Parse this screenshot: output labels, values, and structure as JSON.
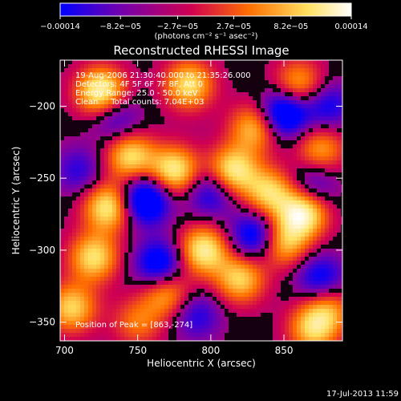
{
  "chart_data": {
    "type": "heatmap",
    "title": "Reconstructed RHESSI Image",
    "xlabel": "Heliocentric X (arcsec)",
    "ylabel": "Heliocentric Y (arcsec)",
    "xlim": [
      697,
      890
    ],
    "ylim": [
      -363,
      -168
    ],
    "x_ticks": [
      700,
      750,
      800,
      850
    ],
    "y_ticks": [
      -200,
      -250,
      -300,
      -350
    ],
    "x_tick_labels": [
      "700",
      "750",
      "800",
      "850"
    ],
    "y_tick_labels": [
      "−200",
      "−250",
      "−300",
      "−350"
    ],
    "colorbar": {
      "tick_labels": [
        "−0.00014",
        "−8.2e−05",
        "−2.7e−05",
        "2.7e−05",
        "8.2e−05",
        "0.00014"
      ],
      "tick_values": [
        -0.00014,
        -8.2e-05,
        -2.7e-05,
        2.7e-05,
        8.2e-05,
        0.00014
      ],
      "range": [
        -0.00014,
        0.00014
      ],
      "units": "(photons cm⁻² s⁻¹ asec⁻²)",
      "colormap": [
        "#0000ff",
        "#7000b0",
        "#d00050",
        "#ff7000",
        "#ffe060",
        "#ffffff"
      ]
    },
    "annotations": [
      "19-Aug-2006 21:30:40.000 to 21:35:26.000",
      "Detectors: 4F 5F 6F 7F 8F, Att 0",
      "Energy Range: 25.0 - 50.0 keV",
      "Clean     Total counts: 7.04E+03"
    ],
    "peak_label": "Position of Peak = [863,-274]",
    "peak": [
      863,
      -274
    ],
    "blobs": [
      {
        "x": 725,
        "y": -190,
        "v": 1.0
      },
      {
        "x": 730,
        "y": -270,
        "v": 0.9
      },
      {
        "x": 720,
        "y": -305,
        "v": 0.8
      },
      {
        "x": 745,
        "y": -235,
        "v": 0.8
      },
      {
        "x": 705,
        "y": -340,
        "v": 0.75
      },
      {
        "x": 785,
        "y": -185,
        "v": 0.8
      },
      {
        "x": 775,
        "y": -245,
        "v": 0.9
      },
      {
        "x": 770,
        "y": -330,
        "v": 0.65
      },
      {
        "x": 795,
        "y": -300,
        "v": 0.9
      },
      {
        "x": 815,
        "y": -245,
        "v": 0.9
      },
      {
        "x": 820,
        "y": -320,
        "v": 0.75
      },
      {
        "x": 830,
        "y": -215,
        "v": 0.7
      },
      {
        "x": 840,
        "y": -260,
        "v": 0.75
      },
      {
        "x": 850,
        "y": -295,
        "v": 0.7
      },
      {
        "x": 860,
        "y": -185,
        "v": 0.65
      },
      {
        "x": 875,
        "y": -230,
        "v": 0.6
      },
      {
        "x": 863,
        "y": -274,
        "v": 1.0
      },
      {
        "x": 880,
        "y": -340,
        "v": 0.55
      },
      {
        "x": 750,
        "y": -350,
        "v": 0.45
      },
      {
        "x": 870,
        "y": -355,
        "v": 0.7
      },
      {
        "x": 735,
        "y": -208,
        "v": -0.45
      },
      {
        "x": 755,
        "y": -265,
        "v": -0.95
      },
      {
        "x": 765,
        "y": -310,
        "v": -0.75
      },
      {
        "x": 850,
        "y": -205,
        "v": -0.9
      },
      {
        "x": 880,
        "y": -200,
        "v": -0.5
      },
      {
        "x": 800,
        "y": -260,
        "v": -0.55
      },
      {
        "x": 830,
        "y": -290,
        "v": -0.7
      },
      {
        "x": 875,
        "y": -320,
        "v": -0.6
      },
      {
        "x": 790,
        "y": -345,
        "v": -0.45
      },
      {
        "x": 710,
        "y": -245,
        "v": -0.4
      },
      {
        "x": 870,
        "y": -255,
        "v": -0.45
      }
    ]
  },
  "footer": {
    "date_label": "17-Jul-2013 11:59"
  }
}
